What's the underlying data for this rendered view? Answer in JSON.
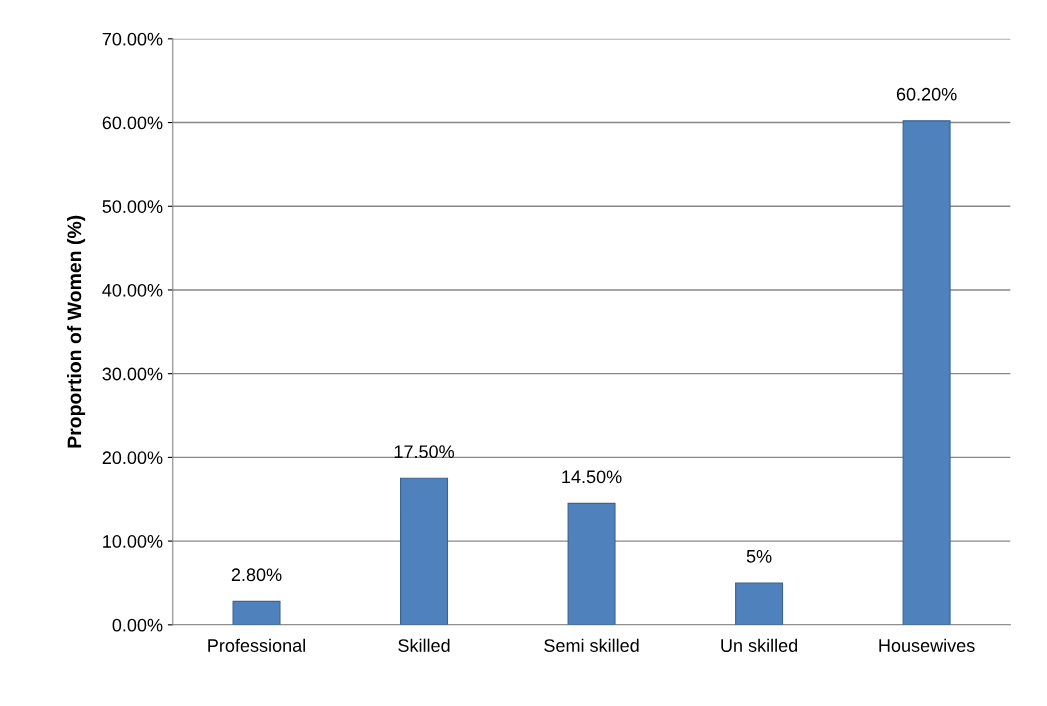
{
  "chart_data": {
    "type": "bar",
    "ylabel": "Proportion of Women (%)",
    "categories": [
      "Professional",
      "Skilled",
      "Semi skilled",
      "Un skilled",
      "Housewives"
    ],
    "values": [
      2.8,
      17.5,
      14.5,
      5,
      60.2
    ],
    "value_labels": [
      "2.80%",
      "17.50%",
      "14.50%",
      "5%",
      "60.20%"
    ],
    "color": "#4f81bd",
    "ylim": [
      0,
      70
    ],
    "yticks": [
      {
        "value": 0,
        "label": "0.00%"
      },
      {
        "value": 10,
        "label": "10.00%"
      },
      {
        "value": 20,
        "label": "20.00%"
      },
      {
        "value": 30,
        "label": "30.00%"
      },
      {
        "value": 40,
        "label": "40.00%"
      },
      {
        "value": 50,
        "label": "50.00%"
      },
      {
        "value": 60,
        "label": "60.00%"
      },
      {
        "value": 70,
        "label": "70.00%"
      }
    ],
    "grid": "y"
  }
}
